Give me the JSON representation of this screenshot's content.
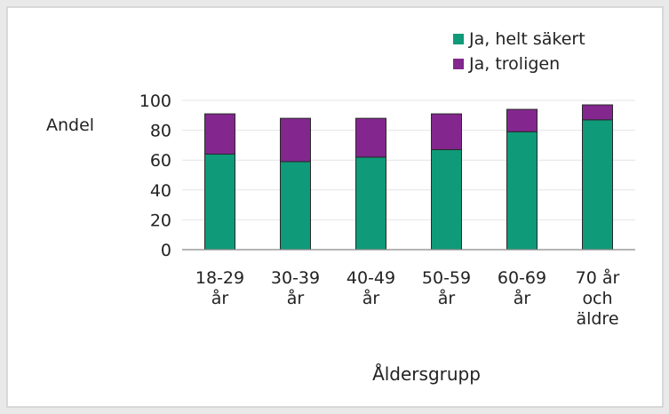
{
  "chart_data": {
    "type": "bar",
    "stacked": true,
    "title": "",
    "ylabel": "Andel",
    "xlabel": "Åldersgrupp",
    "ylim": [
      0,
      100
    ],
    "yticks": [
      0,
      20,
      40,
      60,
      80,
      100
    ],
    "grid": true,
    "legend_position": "top-right",
    "categories": [
      [
        "18-29",
        "år"
      ],
      [
        "30-39",
        "år"
      ],
      [
        "40-49",
        "år"
      ],
      [
        "50-59",
        "år"
      ],
      [
        "60-69",
        "år"
      ],
      [
        "70 år",
        "och",
        "äldre"
      ]
    ],
    "series": [
      {
        "name": "Ja, helt säkert",
        "color": "#0f9a79",
        "values": [
          64,
          59,
          62,
          67,
          79,
          87
        ]
      },
      {
        "name": "Ja, troligen",
        "color": "#83278e",
        "values": [
          27,
          29,
          26,
          24,
          15,
          10
        ]
      }
    ]
  }
}
